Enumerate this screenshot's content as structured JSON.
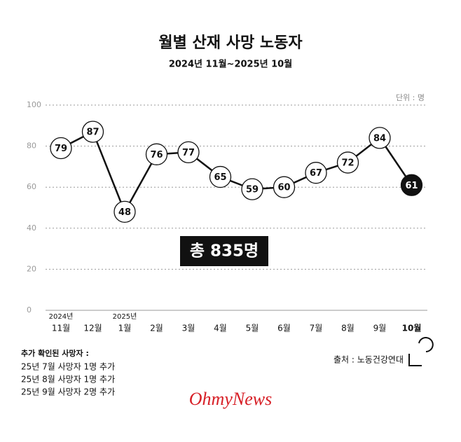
{
  "chart_data": {
    "type": "line",
    "title": "월별 산재 사망 노동자",
    "subtitle": "2024년 11월~2025년 10월",
    "unit": "단위 : 명",
    "categories": [
      "11월",
      "12월",
      "1월",
      "2월",
      "3월",
      "4월",
      "5월",
      "6월",
      "7월",
      "8월",
      "9월",
      "10월"
    ],
    "category_years": [
      "2024년",
      null,
      "2025년",
      null,
      null,
      null,
      null,
      null,
      null,
      null,
      null,
      null
    ],
    "values": [
      79,
      87,
      48,
      76,
      77,
      65,
      59,
      60,
      67,
      72,
      84,
      61
    ],
    "color": "#111111",
    "ylim": [
      0,
      100
    ],
    "yticks": [
      0,
      20,
      40,
      60,
      80,
      100
    ],
    "grid": true,
    "annotation": "총 835명"
  },
  "source": "출처 : 노동건강연대",
  "notes": {
    "title": "추가 확인된 사망자 :",
    "lines": [
      "25년 7월 사망자 1명 추가",
      "25년 8월 사망자 1명 추가",
      "25년 9월 사망자 2명 추가"
    ]
  },
  "logo": "OhmyNews"
}
